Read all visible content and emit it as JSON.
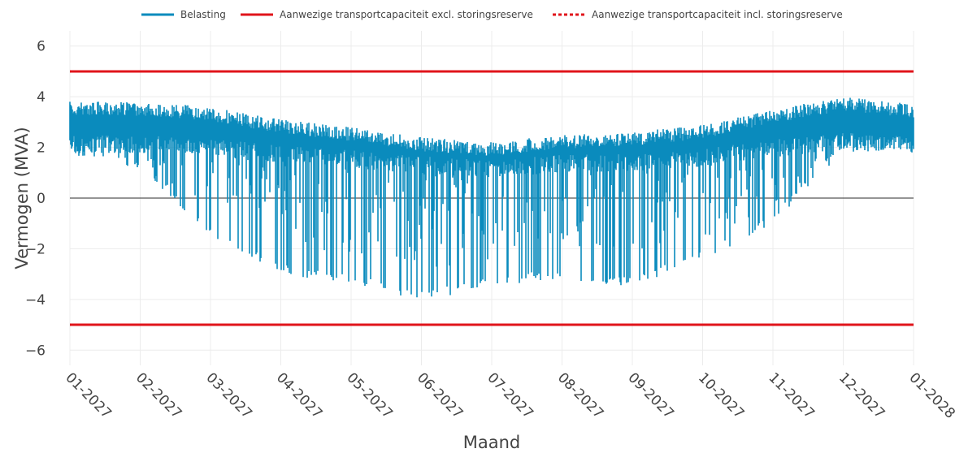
{
  "chart_data": {
    "type": "line",
    "title": "",
    "xlabel": "Maand",
    "ylabel": "Vermogen (MVA)",
    "ylim": [
      -6.6,
      6.6
    ],
    "yticks": [
      -6,
      -4,
      -2,
      0,
      2,
      4,
      6
    ],
    "ytick_labels": [
      "−6",
      "−4",
      "−2",
      "0",
      "2",
      "4",
      "6"
    ],
    "x_range": [
      "2027-01-01",
      "2028-01-01"
    ],
    "xtick_labels": [
      "01-2027",
      "02-2027",
      "03-2027",
      "04-2027",
      "05-2027",
      "06-2027",
      "07-2027",
      "08-2027",
      "09-2027",
      "10-2027",
      "11-2027",
      "12-2027",
      "01-2028"
    ],
    "grid": true,
    "legend_position": "top",
    "legend": [
      {
        "name": "Belasting",
        "color": "#0a8bbd",
        "style": "solid"
      },
      {
        "name": "Aanwezige transportcapaciteit excl. storingsreserve",
        "color": "#e0141b",
        "style": "solid"
      },
      {
        "name": "Aanwezige transportcapaciteit incl. storingsreserve",
        "color": "#e0141b",
        "style": "dotted"
      }
    ],
    "series": [
      {
        "name": "Belasting",
        "color": "#0a8bbd",
        "x_months": [
          "01-2027",
          "02-2027",
          "03-2027",
          "04-2027",
          "05-2027",
          "06-2027",
          "07-2027",
          "08-2027",
          "09-2027",
          "10-2027",
          "11-2027",
          "12-2027",
          "01-2028"
        ],
        "upper_envelope": [
          3.8,
          3.8,
          3.6,
          3.1,
          2.8,
          2.4,
          2.2,
          2.5,
          2.6,
          2.9,
          3.5,
          4.0,
          3.7
        ],
        "lower_envelope": [
          1.6,
          1.2,
          -1.5,
          -3.0,
          -3.4,
          -4.1,
          -3.5,
          -3.2,
          -3.5,
          -2.5,
          -1.0,
          1.8,
          1.8
        ]
      },
      {
        "name": "Aanwezige transportcapaciteit excl. storingsreserve",
        "color": "#e0141b",
        "upper": 5,
        "lower": -5
      },
      {
        "name": "Aanwezige transportcapaciteit incl. storingsreserve",
        "color": "#e0141b",
        "upper": 5,
        "lower": -5
      }
    ],
    "colors": {
      "grid": "#ececec",
      "zero_line": "#555555",
      "text": "#444444"
    }
  }
}
